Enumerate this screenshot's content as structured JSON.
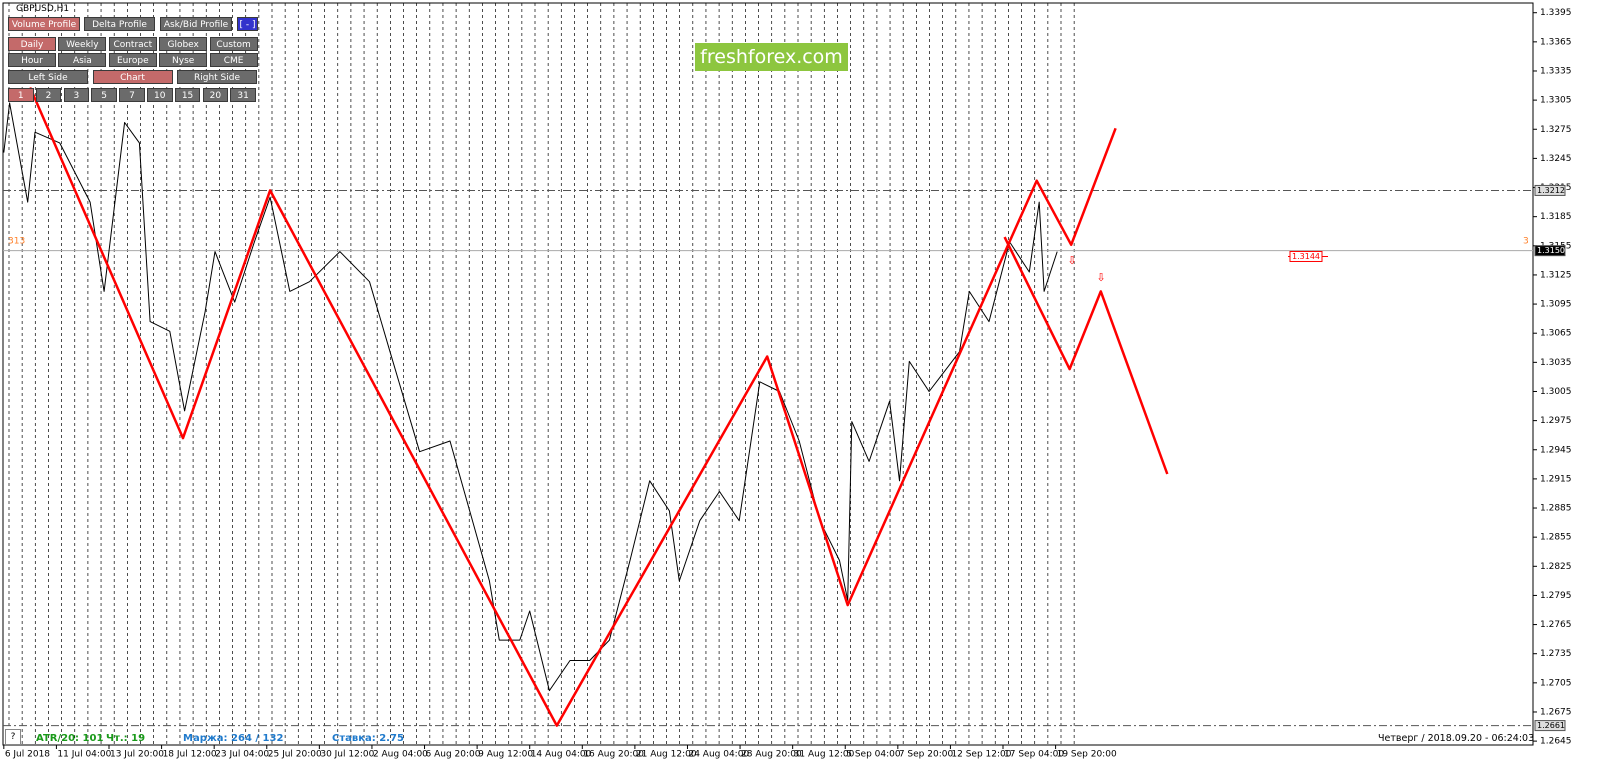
{
  "chart_data": {
    "type": "line",
    "xlim": [
      -1,
      1861
    ],
    "xticks": [
      {
        "value": 0,
        "label": "6 Jul 2018"
      },
      {
        "value": 64,
        "label": "11 Jul 04:00"
      },
      {
        "value": 128,
        "label": "13 Jul 20:00"
      },
      {
        "value": 192,
        "label": "18 Jul 12:00"
      },
      {
        "value": 256,
        "label": "23 Jul 04:00"
      },
      {
        "value": 320,
        "label": "25 Jul 20:00"
      },
      {
        "value": 384,
        "label": "30 Jul 12:00"
      },
      {
        "value": 448,
        "label": "2 Aug 04:00"
      },
      {
        "value": 512,
        "label": "6 Aug 20:00"
      },
      {
        "value": 576,
        "label": "9 Aug 12:00"
      },
      {
        "value": 640,
        "label": "14 Aug 04:00"
      },
      {
        "value": 704,
        "label": "16 Aug 20:00"
      },
      {
        "value": 768,
        "label": "21 Aug 12:00"
      },
      {
        "value": 832,
        "label": "24 Aug 04:00"
      },
      {
        "value": 896,
        "label": "28 Aug 20:00"
      },
      {
        "value": 960,
        "label": "31 Aug 12:00"
      },
      {
        "value": 1024,
        "label": "5 Sep 04:00"
      },
      {
        "value": 1088,
        "label": "7 Sep 20:00"
      },
      {
        "value": 1152,
        "label": "12 Sep 12:00"
      },
      {
        "value": 1216,
        "label": "17 Sep 04:00"
      },
      {
        "value": 1280,
        "label": "19 Sep 20:00"
      }
    ],
    "ylim": [
      1.2641,
      1.3405
    ],
    "yticks": [
      1.3395,
      1.3365,
      1.3335,
      1.3305,
      1.3275,
      1.3245,
      1.3215,
      1.3185,
      1.3155,
      1.3125,
      1.3095,
      1.3065,
      1.3035,
      1.3005,
      1.2975,
      1.2945,
      1.2915,
      1.2885,
      1.2855,
      1.2825,
      1.2795,
      1.2765,
      1.2735,
      1.2705,
      1.2675,
      1.2645
    ],
    "series": [
      {
        "color": "#000000",
        "width": 1,
        "x": [
          0,
          7,
          29,
          38,
          68,
          105,
          122,
          147,
          165,
          178,
          202,
          220,
          245,
          257,
          281,
          305,
          324,
          348,
          372,
          409,
          445,
          470,
          506,
          543,
          567,
          591,
          603,
          628,
          640,
          664,
          689,
          713,
          737,
          762,
          786,
          810,
          822,
          847,
          871,
          895,
          920,
          944,
          968,
          993,
          1017,
          1027,
          1032,
          1053,
          1078,
          1090,
          1102,
          1126,
          1163,
          1175,
          1199,
          1224,
          1248,
          1260,
          1266,
          1282
        ],
        "values": [
          1.3251,
          1.3302,
          1.32,
          1.3272,
          1.3261,
          1.32,
          1.3108,
          1.3282,
          1.3261,
          1.3077,
          1.3067,
          1.2985,
          1.3087,
          1.3149,
          1.3097,
          1.3159,
          1.3205,
          1.3108,
          1.3118,
          1.3149,
          1.3118,
          1.3046,
          1.2943,
          1.2954,
          1.2882,
          1.281,
          1.2749,
          1.2749,
          1.2779,
          1.2697,
          1.2728,
          1.2728,
          1.2749,
          1.2831,
          1.2913,
          1.2882,
          1.281,
          1.2872,
          1.2902,
          1.2872,
          1.3015,
          1.3005,
          1.2954,
          1.2872,
          1.2831,
          1.279,
          1.2974,
          1.2933,
          1.2995,
          1.2913,
          1.3036,
          1.3005,
          1.3046,
          1.3108,
          1.3077,
          1.3159,
          1.3128,
          1.32,
          1.3108,
          1.3149
        ]
      },
      {
        "color": "#ff0000",
        "width": 2.5,
        "x": [
          32,
          218,
          324,
          673,
          929,
          1027,
          1257,
          1299,
          1353
        ],
        "values": [
          1.3318,
          1.2957,
          1.3212,
          1.2661,
          1.3041,
          1.2785,
          1.3222,
          1.3156,
          1.3276
        ]
      },
      {
        "color": "#ff0000",
        "width": 2.5,
        "x": [
          1218,
          1297,
          1335,
          1416
        ],
        "values": [
          1.3164,
          1.3028,
          1.3108,
          1.292
        ]
      }
    ],
    "hlines": [
      {
        "value": 1.3212,
        "style": "dash-dot"
      },
      {
        "value": 1.315,
        "label": "1.3150",
        "style": "solid"
      },
      {
        "value": 1.2661,
        "style": "dash-dot"
      }
    ],
    "level": 1.3144,
    "annotations": [
      "313",
      "3"
    ]
  },
  "ui": {
    "symbol": "GBPUSD,H1",
    "watermark": "freshforex.com",
    "rows": [
      {
        "labels": [
          "Volume Profile",
          "Delta Profile",
          "Ask/Bid Profile",
          "[ - ]"
        ],
        "active": 0
      },
      {
        "labels": [
          "Daily",
          "Weekly",
          "Contract",
          "Globex",
          "Custom"
        ],
        "active": 0
      },
      {
        "labels": [
          "Hour",
          "Asia",
          "Europe",
          "Nyse",
          "CME"
        ],
        "active": -1
      },
      {
        "labels": [
          "Left Side",
          "Chart",
          "Right Side"
        ],
        "active": 1
      },
      {
        "labels": [
          "1",
          "2",
          "3",
          "5",
          "7",
          "10",
          "15",
          "20",
          "31"
        ],
        "active": 0
      }
    ],
    "help": "?",
    "atr": "ATR/20: 101",
    "days": "Чт.: 19",
    "margin": "Маржа: 264 / 132",
    "rate": "Ставка: 2.75",
    "datetime": "Четверг  /  2018.09.20 - 06:24:03"
  }
}
